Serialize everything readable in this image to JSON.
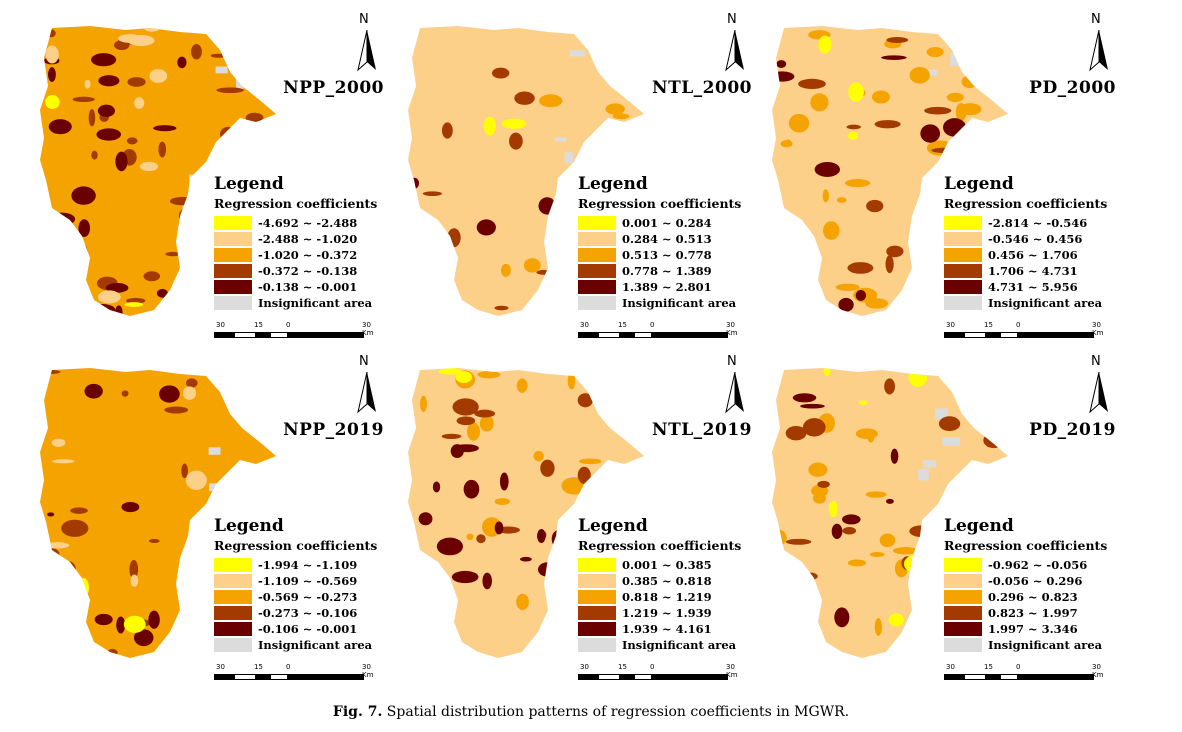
{
  "colors": {
    "ramp": [
      "#ffff00",
      "#fdd08a",
      "#f5a300",
      "#a33a00",
      "#6b0000"
    ],
    "insignificant": "#dcdcdc"
  },
  "legend_title": "Legend",
  "legend_subtitle": "Regression coefficients",
  "insignificant_label": "Insignificant area",
  "north_label": "N",
  "scale_labels": [
    "30",
    "15",
    "0",
    "30 Km"
  ],
  "panels": [
    {
      "title": "NPP_2000",
      "classes": [
        "-4.692 ~ -2.488",
        "-2.488 ~ -1.020",
        "-1.020 ~ -0.372",
        "-0.372 ~ -0.138",
        "-0.138 ~ -0.001"
      ]
    },
    {
      "title": "NTL_2000",
      "classes": [
        "0.001 ~ 0.284",
        "0.284 ~ 0.513",
        "0.513 ~ 0.778",
        "0.778 ~ 1.389",
        "1.389 ~ 2.801"
      ]
    },
    {
      "title": "PD_2000",
      "classes": [
        "-2.814 ~ -0.546",
        "-0.546 ~ 0.456",
        "0.456 ~ 1.706",
        "1.706 ~ 4.731",
        "4.731 ~ 5.956"
      ]
    },
    {
      "title": "NPP_2019",
      "classes": [
        "-1.994 ~ -1.109",
        "-1.109 ~ -0.569",
        "-0.569 ~ -0.273",
        "-0.273 ~ -0.106",
        "-0.106 ~ -0.001"
      ]
    },
    {
      "title": "NTL_2019",
      "classes": [
        "0.001 ~ 0.385",
        "0.385 ~ 0.818",
        "0.818 ~ 1.219",
        "1.219 ~ 1.939",
        "1.939 ~ 4.161"
      ]
    },
    {
      "title": "PD_2019",
      "classes": [
        "-0.962 ~ -0.056",
        "-0.056 ~ 0.296",
        "0.296 ~ 0.823",
        "0.823 ~ 1.997",
        "1.997 ~ 3.346"
      ]
    }
  ],
  "caption": {
    "label": "Fig. 7.",
    "text": "Spatial distribution patterns of regression coefficients in MGWR."
  }
}
